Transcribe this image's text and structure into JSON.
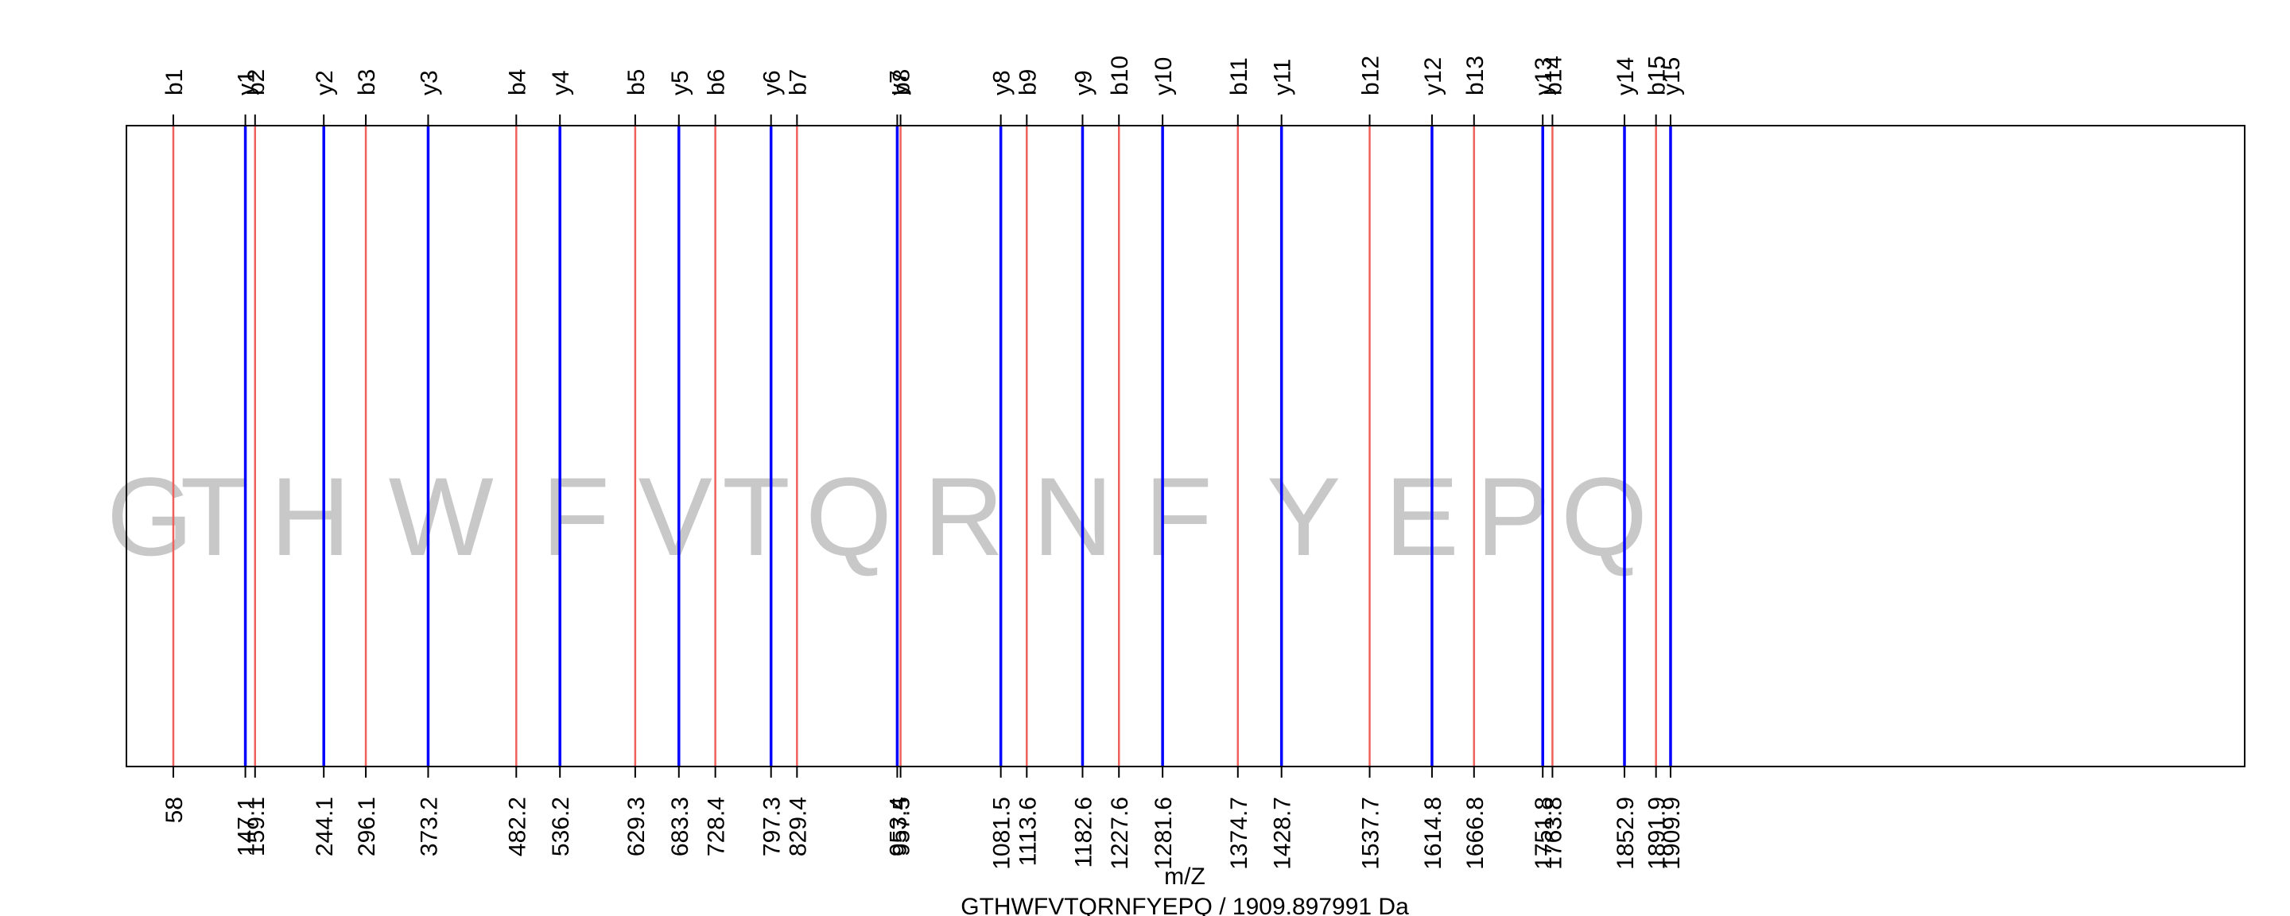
{
  "chart_data": {
    "type": "spectrum",
    "xlabel": "m/Z",
    "caption": "GTHWFVTQRNFYEPQ / 1909.897991 Da",
    "sequence": [
      "G",
      "T",
      "H",
      "W",
      "F",
      "V",
      "T",
      "Q",
      "R",
      "N",
      "F",
      "Y",
      "E",
      "P",
      "Q"
    ],
    "xlim": [
      0,
      2620
    ],
    "colors": {
      "b": "#f0605a",
      "y": "#0000ff",
      "frame": "#000000",
      "residue": "#c8c8c8"
    },
    "b_ions": [
      {
        "label": "b1",
        "mz": 58,
        "mz_label": "58"
      },
      {
        "label": "b2",
        "mz": 159.1,
        "mz_label": "159.1"
      },
      {
        "label": "b3",
        "mz": 296.1,
        "mz_label": "296.1"
      },
      {
        "label": "b4",
        "mz": 482.2,
        "mz_label": "482.2"
      },
      {
        "label": "b5",
        "mz": 629.3,
        "mz_label": "629.3"
      },
      {
        "label": "b6",
        "mz": 728.4,
        "mz_label": "728.4"
      },
      {
        "label": "b7",
        "mz": 829.4,
        "mz_label": "829.4"
      },
      {
        "label": "b8",
        "mz": 957.5,
        "mz_label": "957.5"
      },
      {
        "label": "b9",
        "mz": 1113.6,
        "mz_label": "1113.6"
      },
      {
        "label": "b10",
        "mz": 1227.6,
        "mz_label": "1227.6"
      },
      {
        "label": "b11",
        "mz": 1374.7,
        "mz_label": "1374.7"
      },
      {
        "label": "b12",
        "mz": 1537.7,
        "mz_label": "1537.7"
      },
      {
        "label": "b13",
        "mz": 1666.8,
        "mz_label": "1666.8"
      },
      {
        "label": "b14",
        "mz": 1763.8,
        "mz_label": "1763.8"
      },
      {
        "label": "b15",
        "mz": 1891.9,
        "mz_label": "1891.9"
      }
    ],
    "y_ions": [
      {
        "label": "y1",
        "mz": 147.1,
        "mz_label": "147.1"
      },
      {
        "label": "y2",
        "mz": 244.1,
        "mz_label": "244.1"
      },
      {
        "label": "y3",
        "mz": 373.2,
        "mz_label": "373.2"
      },
      {
        "label": "y4",
        "mz": 536.2,
        "mz_label": "536.2"
      },
      {
        "label": "y5",
        "mz": 683.3,
        "mz_label": "683.3"
      },
      {
        "label": "y6",
        "mz": 797.3,
        "mz_label": "797.3"
      },
      {
        "label": "y7",
        "mz": 953.4,
        "mz_label": "953.4"
      },
      {
        "label": "y8",
        "mz": 1081.5,
        "mz_label": "1081.5"
      },
      {
        "label": "y9",
        "mz": 1182.6,
        "mz_label": "1182.6"
      },
      {
        "label": "y10",
        "mz": 1281.6,
        "mz_label": "1281.6"
      },
      {
        "label": "y11",
        "mz": 1428.7,
        "mz_label": "1428.7"
      },
      {
        "label": "y12",
        "mz": 1614.8,
        "mz_label": "1614.8"
      },
      {
        "label": "y13",
        "mz": 1751.8,
        "mz_label": "1751.8"
      },
      {
        "label": "y14",
        "mz": 1852.9,
        "mz_label": "1852.9"
      },
      {
        "label": "y15",
        "mz": 1909.9,
        "mz_label": "1909.9"
      }
    ]
  }
}
